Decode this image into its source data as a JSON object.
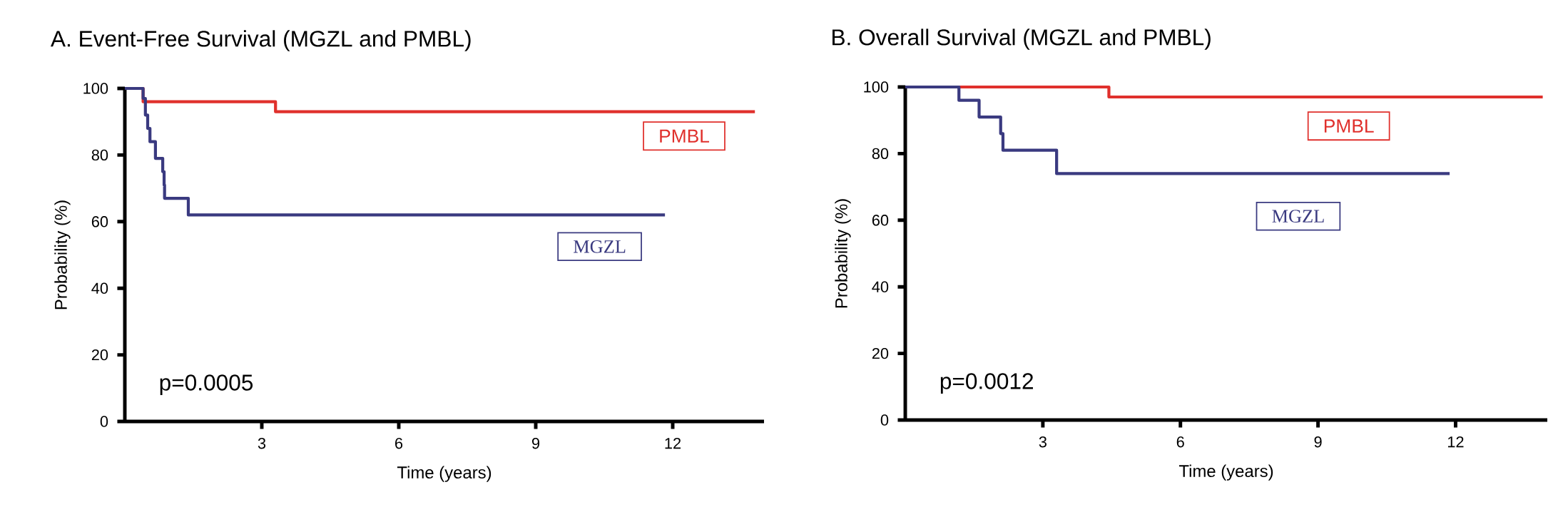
{
  "chart_data": [
    {
      "type": "step",
      "title": "A. Event-Free Survival (MGZL and PMBL)",
      "xlabel": "Time (years)",
      "ylabel": "Probability (%)",
      "xlim": [
        0,
        14
      ],
      "ylim": [
        0,
        100
      ],
      "xticks": [
        3,
        6,
        9,
        12
      ],
      "yticks": [
        0,
        20,
        40,
        60,
        80,
        100
      ],
      "annotations": [
        "p=0.0005"
      ],
      "series": [
        {
          "name": "PMBL",
          "color": "#e0302c",
          "x": [
            0,
            0.4,
            3.3,
            13.8
          ],
          "values": [
            100,
            96,
            93,
            93
          ]
        },
        {
          "name": "MGZL",
          "color": "#3a3a80",
          "x": [
            0,
            0.4,
            0.45,
            0.5,
            0.55,
            0.67,
            0.83,
            0.86,
            0.87,
            1.39,
            11.83
          ],
          "values": [
            100,
            97,
            92,
            88,
            84,
            79,
            75,
            71,
            67,
            62,
            62
          ]
        }
      ]
    },
    {
      "type": "step",
      "title": "B. Overall Survival (MGZL and PMBL)",
      "xlabel": "Time (years)",
      "ylabel": "Probability (%)",
      "xlim": [
        0,
        14
      ],
      "ylim": [
        0,
        100
      ],
      "xticks": [
        3,
        6,
        9,
        12
      ],
      "yticks": [
        0,
        20,
        40,
        60,
        80,
        100
      ],
      "annotations": [
        "p=0.0012"
      ],
      "series": [
        {
          "name": "PMBL",
          "color": "#e0302c",
          "x": [
            0,
            4.44,
            13.9
          ],
          "values": [
            100,
            97,
            97
          ]
        },
        {
          "name": "MGZL",
          "color": "#3a3a80",
          "x": [
            0,
            1.17,
            1.61,
            2.08,
            2.13,
            3.3,
            11.87
          ],
          "values": [
            100,
            96,
            91,
            86,
            81,
            74,
            74
          ]
        }
      ]
    }
  ]
}
